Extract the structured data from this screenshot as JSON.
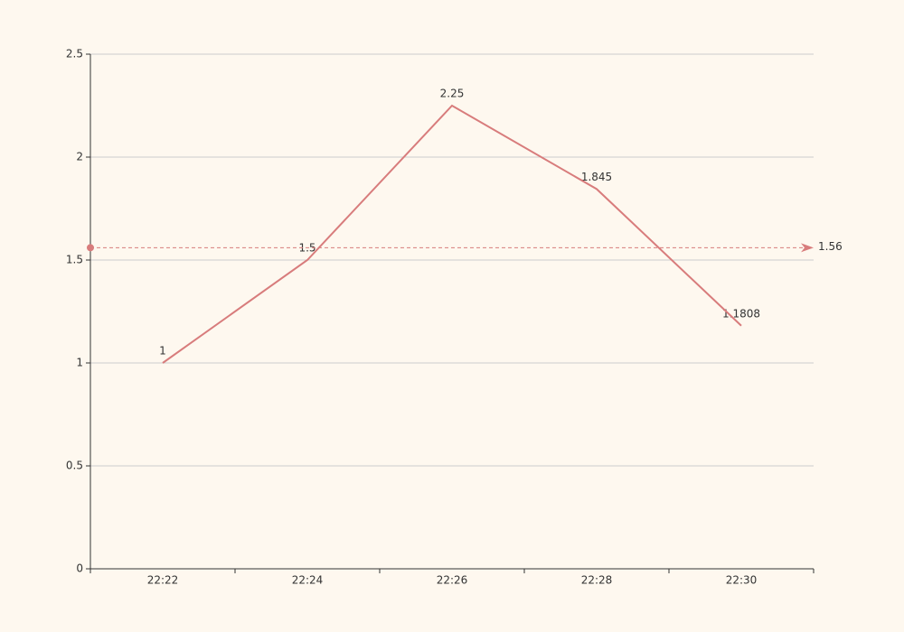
{
  "chart_data": {
    "type": "line",
    "categories": [
      "22:22",
      "22:24",
      "22:26",
      "22:28",
      "22:30"
    ],
    "series": [
      {
        "color": "#d87c7c",
        "values": [
          1,
          1.5,
          2.25,
          1.845,
          1.1808
        ]
      }
    ],
    "ylim": [
      0,
      2.5
    ],
    "yticks": [
      0,
      0.5,
      1,
      1.5,
      2,
      2.5
    ],
    "grid": true,
    "mark_line": {
      "value": 1.56,
      "color": "#d87c7c"
    }
  }
}
